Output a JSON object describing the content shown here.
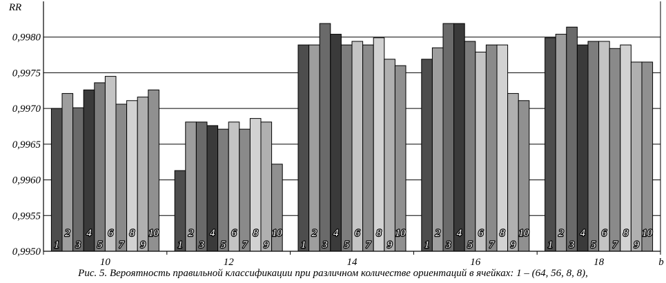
{
  "chart_data": {
    "type": "bar",
    "ylabel": "RR",
    "xlabel": "b",
    "ylim": [
      0.995,
      0.9985
    ],
    "yticks": [
      "0,9950",
      "0,9955",
      "0,9960",
      "0,9965",
      "0,9970",
      "0,9975",
      "0,9980"
    ],
    "categories": [
      "10",
      "12",
      "14",
      "16",
      "18"
    ],
    "grid": true,
    "series": [
      {
        "name": "1",
        "values": [
          0.997,
          0.99613,
          0.99789,
          0.99769,
          0.99799
        ]
      },
      {
        "name": "2",
        "values": [
          0.99721,
          0.99681,
          0.99789,
          0.99785,
          0.99804
        ]
      },
      {
        "name": "3",
        "values": [
          0.99701,
          0.99681,
          0.99819,
          0.99819,
          0.99814
        ]
      },
      {
        "name": "4",
        "values": [
          0.99726,
          0.99676,
          0.99804,
          0.99819,
          0.99789
        ]
      },
      {
        "name": "5",
        "values": [
          0.99736,
          0.99671,
          0.99789,
          0.99794,
          0.99794
        ]
      },
      {
        "name": "6",
        "values": [
          0.99745,
          0.99681,
          0.99794,
          0.99779,
          0.99794
        ]
      },
      {
        "name": "7",
        "values": [
          0.99706,
          0.99671,
          0.99789,
          0.99789,
          0.99784
        ]
      },
      {
        "name": "8",
        "values": [
          0.99711,
          0.99686,
          0.99799,
          0.99789,
          0.99789
        ]
      },
      {
        "name": "9",
        "values": [
          0.99716,
          0.99681,
          0.99769,
          0.99721,
          0.99765
        ]
      },
      {
        "name": "10",
        "values": [
          0.99726,
          0.99622,
          0.9976,
          0.99711,
          0.99765
        ]
      }
    ],
    "bar_colors": [
      "#4d4d4d",
      "#9e9e9e",
      "#6a6a6a",
      "#3a3a3a",
      "#7d7d7d",
      "#c4c4c4",
      "#8a8a8a",
      "#d2d2d2",
      "#b0b0b0",
      "#909090"
    ]
  },
  "caption": "Рис. 5. Вероятность правильной классификации при различном количестве ориентаций в ячейках: 1 – (64, 56, 8, 8),"
}
